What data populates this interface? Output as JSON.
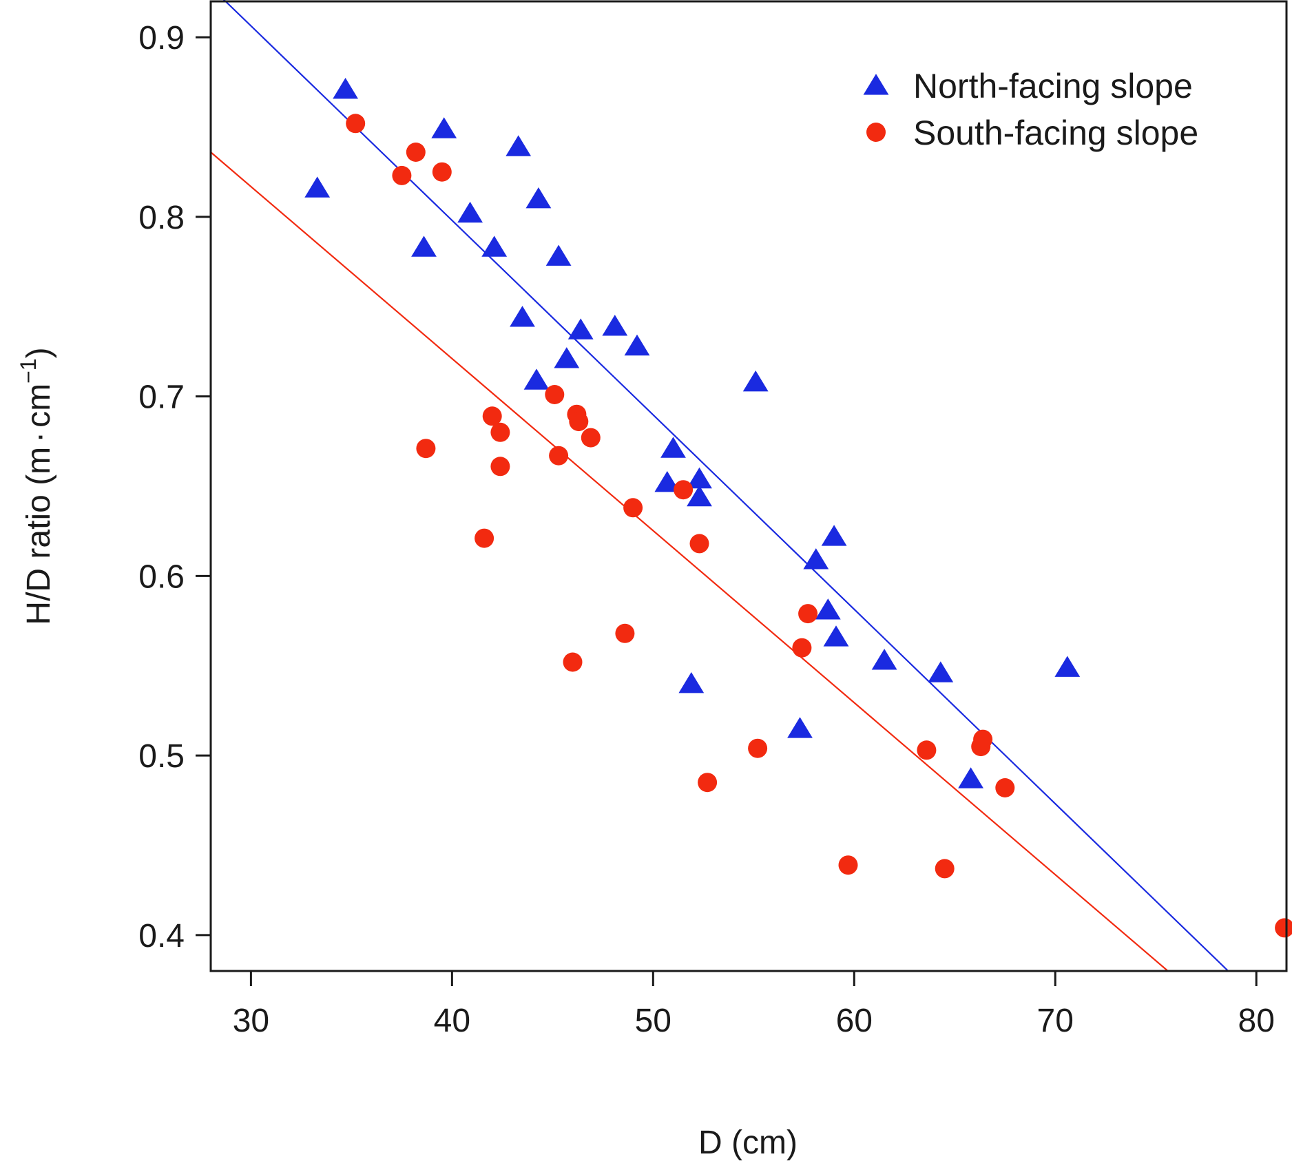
{
  "chart_data": {
    "type": "scatter",
    "xlabel": "D (cm)",
    "ylabel": {
      "main": "H/D ratio (m",
      "dot": "·",
      "unit": "cm",
      "exp": "−1",
      "close": ")"
    },
    "xlim": [
      28,
      81.5
    ],
    "ylim": [
      0.38,
      0.92
    ],
    "xticks": [
      30,
      40,
      50,
      60,
      70,
      80
    ],
    "xtick_labels": [
      "30",
      "40",
      "50",
      "60",
      "70",
      "80"
    ],
    "yticks": [
      0.4,
      0.5,
      0.6,
      0.7,
      0.8,
      0.9
    ],
    "ytick_labels": [
      "0.4",
      "0.5",
      "0.6",
      "0.7",
      "0.8",
      "0.9"
    ],
    "legend_position": "top-right",
    "series": [
      {
        "name": "North-facing slope",
        "marker": "triangle",
        "color": "#1a2ae0",
        "points": [
          [
            33.3,
            0.816
          ],
          [
            34.7,
            0.871
          ],
          [
            38.6,
            0.783
          ],
          [
            39.6,
            0.849
          ],
          [
            40.9,
            0.802
          ],
          [
            42.1,
            0.783
          ],
          [
            43.3,
            0.839
          ],
          [
            43.5,
            0.744
          ],
          [
            44.2,
            0.709
          ],
          [
            44.3,
            0.81
          ],
          [
            45.3,
            0.778
          ],
          [
            45.7,
            0.721
          ],
          [
            46.4,
            0.737
          ],
          [
            48.1,
            0.739
          ],
          [
            49.2,
            0.728
          ],
          [
            50.7,
            0.652
          ],
          [
            51.0,
            0.671
          ],
          [
            51.9,
            0.54
          ],
          [
            52.3,
            0.654
          ],
          [
            52.3,
            0.644
          ],
          [
            55.1,
            0.708
          ],
          [
            57.3,
            0.515
          ],
          [
            58.1,
            0.609
          ],
          [
            58.7,
            0.581
          ],
          [
            59.0,
            0.622
          ],
          [
            59.1,
            0.566
          ],
          [
            61.5,
            0.553
          ],
          [
            64.3,
            0.546
          ],
          [
            65.8,
            0.487
          ],
          [
            70.6,
            0.549
          ]
        ],
        "fit_line": {
          "x": [
            28,
            78.6
          ],
          "y": [
            0.928,
            0.38
          ]
        }
      },
      {
        "name": "South-facing slope",
        "marker": "circle",
        "color": "#f22a10",
        "points": [
          [
            35.2,
            0.852
          ],
          [
            37.5,
            0.823
          ],
          [
            38.2,
            0.836
          ],
          [
            38.7,
            0.671
          ],
          [
            39.5,
            0.825
          ],
          [
            41.6,
            0.621
          ],
          [
            42.0,
            0.689
          ],
          [
            42.4,
            0.68
          ],
          [
            42.4,
            0.661
          ],
          [
            45.1,
            0.701
          ],
          [
            45.3,
            0.667
          ],
          [
            46.0,
            0.552
          ],
          [
            46.2,
            0.69
          ],
          [
            46.3,
            0.686
          ],
          [
            46.9,
            0.677
          ],
          [
            48.6,
            0.568
          ],
          [
            49.0,
            0.638
          ],
          [
            51.5,
            0.648
          ],
          [
            52.3,
            0.618
          ],
          [
            52.7,
            0.485
          ],
          [
            55.2,
            0.504
          ],
          [
            57.4,
            0.56
          ],
          [
            57.7,
            0.579
          ],
          [
            59.7,
            0.439
          ],
          [
            63.6,
            0.503
          ],
          [
            64.5,
            0.437
          ],
          [
            66.3,
            0.505
          ],
          [
            66.4,
            0.509
          ],
          [
            67.5,
            0.482
          ],
          [
            81.4,
            0.404
          ]
        ],
        "fit_line": {
          "x": [
            28,
            75.6
          ],
          "y": [
            0.836,
            0.38
          ]
        }
      }
    ]
  }
}
